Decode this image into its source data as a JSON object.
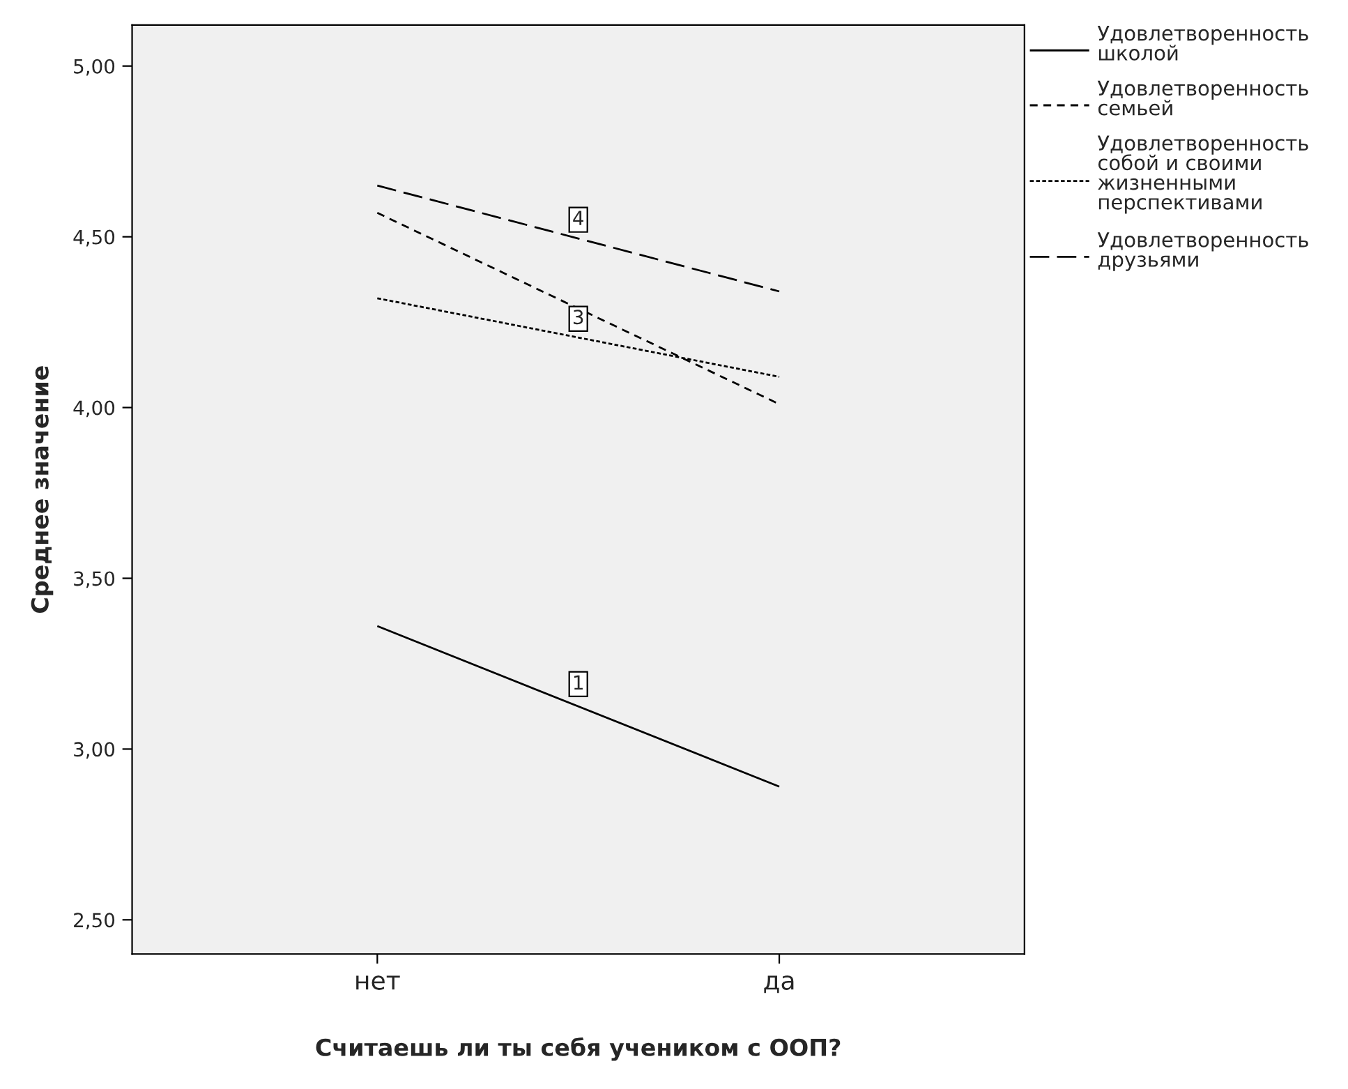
{
  "chart_data": {
    "type": "line",
    "xlabel": "Считаешь ли ты себя учеником с ООП?",
    "ylabel": "Среднее значение",
    "categories": [
      "нет",
      "да"
    ],
    "series": [
      {
        "name": "Удовлетворенность школой",
        "color": "#000000",
        "line_style": "solid",
        "values": [
          3.36,
          2.89
        ]
      },
      {
        "name": "Удовлетворенность семьей",
        "color": "#000000",
        "line_style": "dashed",
        "values": [
          4.57,
          4.01
        ]
      },
      {
        "name": "Удовлетворенность собой и своими жизненными перспективами",
        "color": "#000000",
        "line_style": "dotted",
        "values": [
          4.32,
          4.09
        ]
      },
      {
        "name": "Удовлетворенность друзьями",
        "color": "#000000",
        "line_style": "longdash",
        "values": [
          4.65,
          4.34
        ]
      }
    ],
    "annotations": [
      {
        "text": "1",
        "y": 3.19
      },
      {
        "text": "3",
        "y": 4.26
      },
      {
        "text": "4",
        "y": 4.55
      }
    ],
    "ylim": [
      2.4,
      5.12
    ],
    "yticks": [
      {
        "value": 2.5,
        "label": "2,50"
      },
      {
        "value": 3.0,
        "label": "3,00"
      },
      {
        "value": 3.5,
        "label": "3,50"
      },
      {
        "value": 4.0,
        "label": "4,00"
      },
      {
        "value": 4.5,
        "label": "4,50"
      },
      {
        "value": 5.0,
        "label": "5,00"
      }
    ],
    "grid": false,
    "legend": "right",
    "marker": "none"
  }
}
